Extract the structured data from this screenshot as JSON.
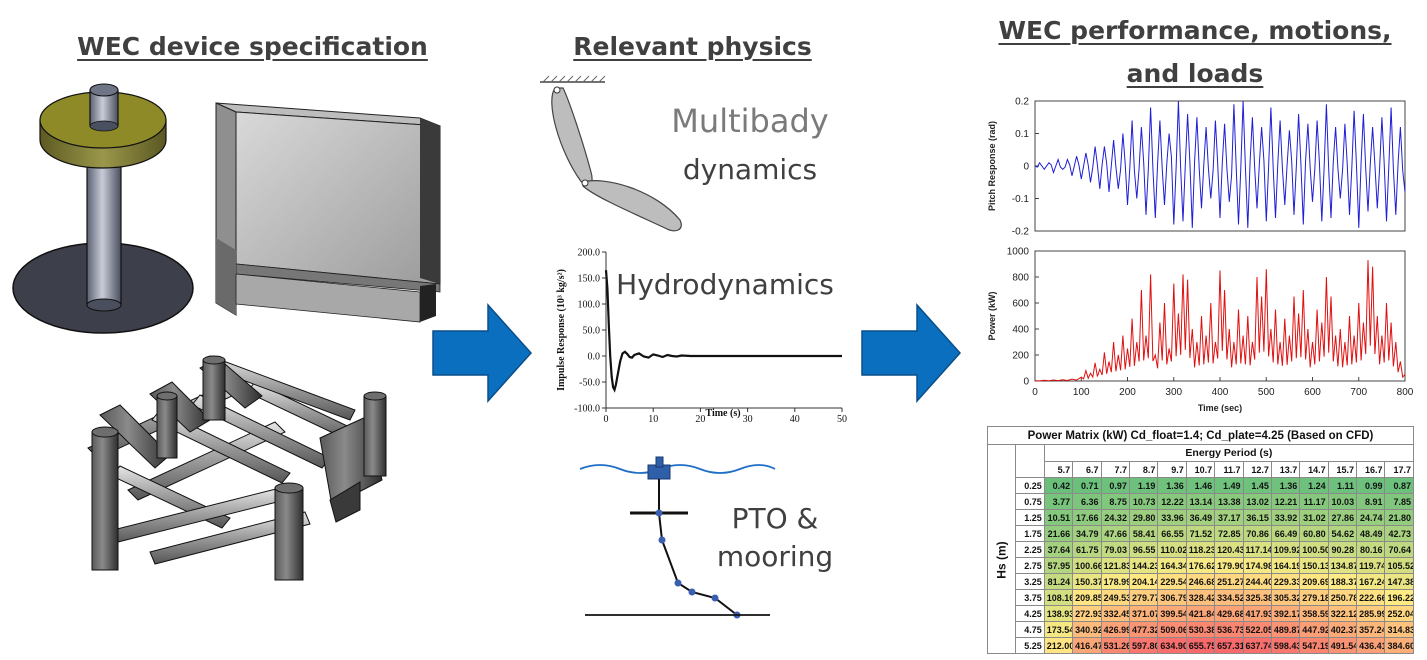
{
  "headings": {
    "left": "WEC device specification",
    "middle": "Relevant physics",
    "right_line1": "WEC performance, motions,",
    "right_line2": "and loads"
  },
  "physics_labels": {
    "multibody_line1": "Multibady",
    "multibody_line2": "dynamics",
    "hydrodynamics": "Hydrodynamics",
    "pto_line1": "PTO &",
    "pto_line2": "mooring"
  },
  "colors": {
    "arrow_blue": "#0a6fbf",
    "pitch_series": "#1f1fd6",
    "power_series": "#e01010",
    "heading_text": "#404040"
  },
  "chart_data": [
    {
      "type": "line",
      "title": "",
      "xlabel": "Time (s)",
      "ylabel": "Impulse Response (10³ kg/s²)",
      "xlim": [
        0,
        50
      ],
      "ylim": [
        -100,
        200
      ],
      "xticks": [
        "0",
        "10",
        "20",
        "30",
        "40",
        "50"
      ],
      "yticks": [
        "200.0",
        "150.0",
        "100.0",
        "50.0",
        "0.0",
        "-50.0",
        "-100.0"
      ],
      "series": [
        {
          "x": [
            0,
            0.3,
            0.6,
            0.9,
            1.2,
            1.5,
            1.8,
            2.1,
            2.5,
            3,
            3.5,
            4,
            4.5,
            5,
            5.5,
            6,
            7,
            8,
            9,
            10,
            11,
            12,
            13,
            14,
            15,
            16,
            18,
            20,
            25,
            30,
            35,
            40,
            45,
            50
          ],
          "y": [
            165,
            130,
            60,
            0,
            -40,
            -60,
            -65,
            -55,
            -35,
            -10,
            5,
            8,
            4,
            -2,
            -3,
            2,
            5,
            -1,
            -3,
            3,
            1,
            -2,
            2,
            0,
            -1,
            1,
            0,
            0,
            0,
            0,
            0,
            0,
            0,
            0
          ]
        }
      ]
    },
    {
      "type": "line",
      "title": "",
      "xlabel": "",
      "ylabel": "Pitch Response (rad)",
      "xlim": [
        0,
        800
      ],
      "ylim": [
        -0.2,
        0.2
      ],
      "yticks": [
        "0.2",
        "0.1",
        "0",
        "-0.1",
        "-0.2"
      ],
      "series": [
        {
          "name": "",
          "x": [
            0,
            10,
            20,
            30,
            40,
            50,
            60,
            70,
            80,
            90,
            100,
            110,
            120,
            130,
            140,
            150,
            160,
            170,
            180,
            190,
            200,
            210,
            220,
            230,
            240,
            250,
            260,
            270,
            280,
            290,
            300,
            310,
            320,
            330,
            340,
            350,
            360,
            370,
            380,
            390,
            400,
            410,
            420,
            430,
            440,
            450,
            460,
            470,
            480,
            490,
            500,
            510,
            520,
            530,
            540,
            550,
            560,
            570,
            580,
            590,
            600,
            610,
            620,
            630,
            640,
            650,
            660,
            670,
            680,
            690,
            700,
            710,
            720,
            730,
            740,
            750,
            760,
            770,
            780,
            790,
            800
          ],
          "y": [
            0.0,
            0.01,
            -0.01,
            0.01,
            -0.02,
            0.02,
            -0.01,
            0.02,
            -0.03,
            0.03,
            -0.04,
            0.04,
            -0.05,
            0.06,
            -0.07,
            0.06,
            -0.08,
            0.08,
            -0.07,
            0.1,
            -0.12,
            0.14,
            -0.1,
            0.12,
            -0.15,
            0.18,
            -0.16,
            0.14,
            -0.12,
            0.1,
            -0.18,
            0.2,
            -0.17,
            0.16,
            -0.19,
            0.15,
            -0.13,
            0.12,
            -0.1,
            0.14,
            -0.16,
            0.13,
            -0.11,
            0.19,
            -0.18,
            0.2,
            -0.19,
            0.15,
            -0.13,
            0.12,
            -0.17,
            0.18,
            -0.16,
            0.14,
            -0.12,
            0.11,
            -0.15,
            0.16,
            -0.18,
            0.13,
            -0.11,
            0.14,
            -0.17,
            0.19,
            -0.16,
            0.12,
            -0.1,
            0.13,
            -0.15,
            0.17,
            -0.19,
            0.16,
            -0.14,
            0.12,
            -0.13,
            0.15,
            -0.17,
            0.18,
            -0.15,
            0.12,
            -0.08
          ]
        }
      ]
    },
    {
      "type": "line",
      "title": "",
      "xlabel": "Time  (sec)",
      "ylabel": "Power (kW)",
      "xlim": [
        0,
        800
      ],
      "ylim": [
        0,
        1000
      ],
      "xticks": [
        "0",
        "100",
        "200",
        "300",
        "400",
        "500",
        "600",
        "700",
        "800"
      ],
      "yticks": [
        "1000",
        "800",
        "600",
        "400",
        "200",
        "0"
      ],
      "series": [
        {
          "name": "",
          "x": [
            0,
            20,
            40,
            60,
            80,
            100,
            110,
            120,
            130,
            140,
            150,
            160,
            170,
            180,
            190,
            200,
            210,
            220,
            230,
            240,
            250,
            260,
            270,
            280,
            290,
            300,
            310,
            320,
            330,
            340,
            350,
            360,
            370,
            380,
            390,
            400,
            410,
            420,
            430,
            440,
            450,
            460,
            470,
            480,
            490,
            500,
            510,
            520,
            530,
            540,
            550,
            560,
            570,
            580,
            590,
            600,
            610,
            620,
            630,
            640,
            650,
            660,
            670,
            680,
            690,
            700,
            710,
            720,
            730,
            740,
            750,
            760,
            770,
            780,
            790,
            800
          ],
          "y": [
            2,
            5,
            8,
            10,
            15,
            30,
            80,
            60,
            140,
            90,
            220,
            150,
            300,
            200,
            350,
            250,
            480,
            300,
            700,
            350,
            820,
            200,
            450,
            600,
            250,
            750,
            520,
            820,
            780,
            400,
            300,
            500,
            350,
            600,
            300,
            850,
            700,
            400,
            300,
            550,
            350,
            500,
            300,
            800,
            650,
            860,
            400,
            550,
            300,
            480,
            350,
            650,
            520,
            700,
            400,
            300,
            550,
            450,
            800,
            650,
            350,
            400,
            300,
            500,
            350,
            600,
            450,
            930,
            880,
            500,
            350,
            600,
            450,
            300,
            150,
            50
          ]
        }
      ]
    },
    {
      "type": "table",
      "title": "Power Matrix (kW) Cd_float=1.4; Cd_plate=4.25 (Based on CFD)",
      "col_header": "Energy Period (s)",
      "row_header": "Hs (m)",
      "columns": [
        "5.7",
        "6.7",
        "7.7",
        "8.7",
        "9.7",
        "10.7",
        "11.7",
        "12.7",
        "13.7",
        "14.7",
        "15.7",
        "16.7",
        "17.7"
      ],
      "rows": [
        {
          "hs": "0.25",
          "values": [
            "0.42",
            "0.71",
            "0.97",
            "1.19",
            "1.36",
            "1.46",
            "1.49",
            "1.45",
            "1.36",
            "1.24",
            "1.11",
            "0.99",
            "0.87"
          ]
        },
        {
          "hs": "0.75",
          "values": [
            "3.77",
            "6.36",
            "8.75",
            "10.73",
            "12.22",
            "13.14",
            "13.38",
            "13.02",
            "12.21",
            "11.17",
            "10.03",
            "8.91",
            "7.85"
          ]
        },
        {
          "hs": "1.25",
          "values": [
            "10.51",
            "17.66",
            "24.32",
            "29.80",
            "33.96",
            "36.49",
            "37.17",
            "36.15",
            "33.92",
            "31.02",
            "27.86",
            "24.74",
            "21.80"
          ]
        },
        {
          "hs": "1.75",
          "values": [
            "21.66",
            "34.79",
            "47.66",
            "58.41",
            "66.55",
            "71.52",
            "72.85",
            "70.86",
            "66.49",
            "60.80",
            "54.62",
            "48.49",
            "42.73"
          ]
        },
        {
          "hs": "2.25",
          "values": [
            "37.64",
            "61.75",
            "79.03",
            "96.55",
            "110.02",
            "118.23",
            "120.43",
            "117.14",
            "109.92",
            "100.50",
            "90.28",
            "80.16",
            "70.64"
          ]
        },
        {
          "hs": "2.75",
          "values": [
            "57.95",
            "100.66",
            "121.83",
            "144.23",
            "164.34",
            "176.62",
            "179.90",
            "174.98",
            "164.19",
            "150.13",
            "134.87",
            "119.74",
            "105.52"
          ]
        },
        {
          "hs": "3.25",
          "values": [
            "81.24",
            "150.37",
            "178.99",
            "204.14",
            "229.54",
            "246.68",
            "251.27",
            "244.40",
            "229.33",
            "209.69",
            "188.37",
            "167.24",
            "147.38"
          ]
        },
        {
          "hs": "3.75",
          "values": [
            "108.16",
            "209.85",
            "249.53",
            "279.77",
            "306.79",
            "328.42",
            "334.52",
            "325.38",
            "305.32",
            "279.18",
            "250.78",
            "222.66",
            "196.22"
          ]
        },
        {
          "hs": "4.25",
          "values": [
            "138.93",
            "272.93",
            "332.45",
            "371.07",
            "399.54",
            "421.84",
            "429.68",
            "417.93",
            "392.17",
            "358.59",
            "322.12",
            "285.99",
            "252.04"
          ]
        },
        {
          "hs": "4.75",
          "values": [
            "173.54",
            "340.92",
            "426.99",
            "477.32",
            "509.06",
            "530.38",
            "536.73",
            "522.05",
            "489.87",
            "447.92",
            "402.37",
            "357.24",
            "314.83"
          ]
        },
        {
          "hs": "5.25",
          "values": [
            "212.00",
            "416.47",
            "531.26",
            "597.80",
            "634.90",
            "655.75",
            "657.31",
            "637.74",
            "598.43",
            "547.19",
            "491.54",
            "436.41",
            "384.60"
          ]
        }
      ]
    }
  ]
}
